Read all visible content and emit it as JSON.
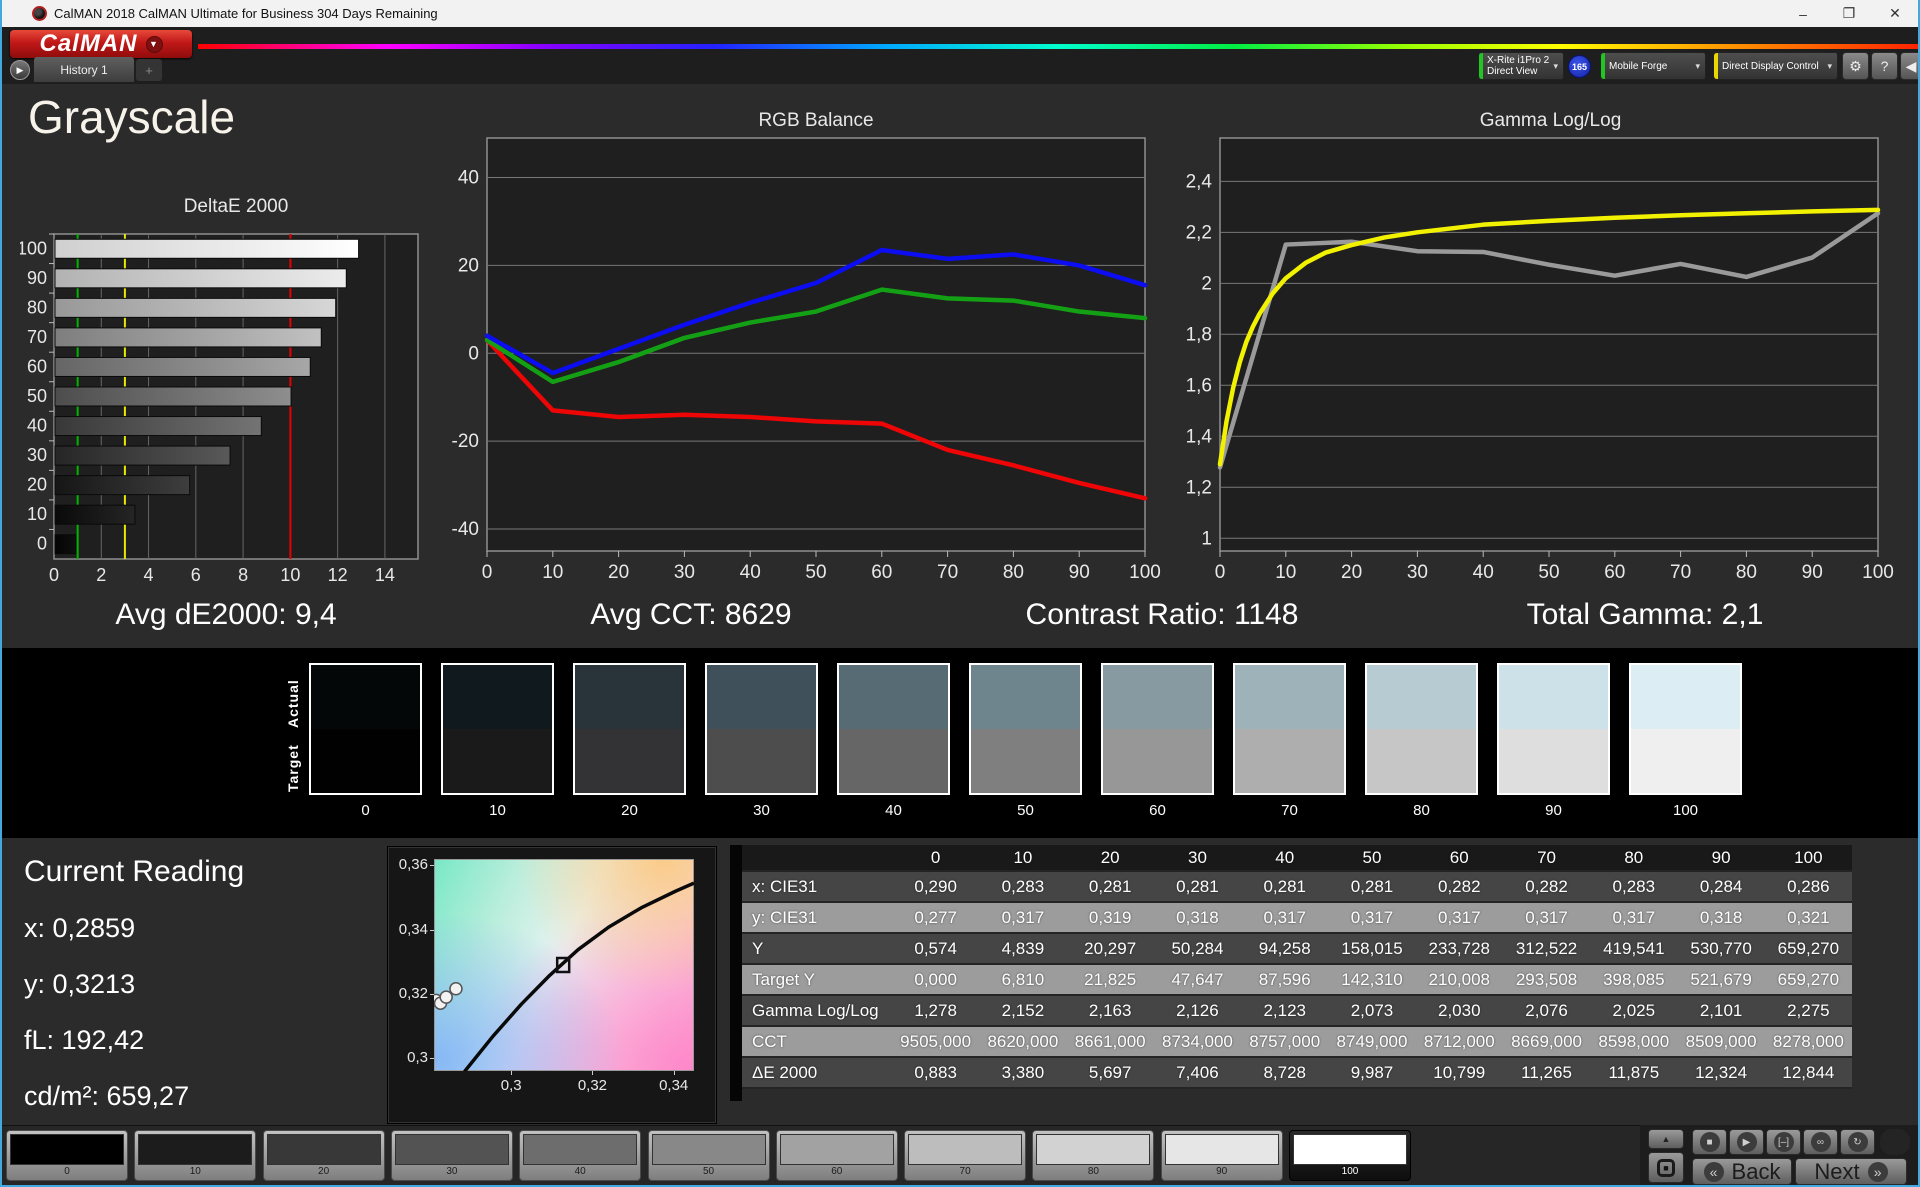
{
  "window": {
    "title": "CalMAN 2018 CalMAN Ultimate for Business 304 Days Remaining",
    "minimize": "–",
    "maximize": "❐",
    "close": "✕"
  },
  "brand": {
    "logo": "CalMAN",
    "logo_arrow": "▼"
  },
  "toolbar": {
    "tab_arrow": "▶",
    "history_tab": "History 1",
    "add_tab": "+",
    "meter_line1": "X-Rite i1Pro 2",
    "meter_line2": "Direct View",
    "meter_badge": "165",
    "source": "Mobile Forge",
    "control": "Direct Display Control",
    "dropdown_arrow": "▾",
    "gear": "⚙",
    "help": "?",
    "collapse": "◀",
    "accent_green": "#22c522",
    "accent_yellow": "#e8d800"
  },
  "page_title": "Grayscale",
  "summary": {
    "avg_de": "Avg dE2000: 9,4",
    "avg_cct": "Avg CCT: 8629",
    "contrast": "Contrast Ratio: 1148",
    "total_gamma": "Total Gamma: 2,1"
  },
  "chart_data": [
    {
      "type": "bar",
      "title": "DeltaE 2000",
      "orientation": "horizontal",
      "categories": [
        "100",
        "90",
        "80",
        "70",
        "60",
        "50",
        "40",
        "30",
        "20",
        "10",
        "0"
      ],
      "values": [
        12.844,
        12.324,
        11.875,
        11.265,
        10.799,
        9.987,
        8.728,
        7.406,
        5.697,
        3.38,
        0.883
      ],
      "xlim": [
        0,
        15.4
      ],
      "xticks": [
        0,
        2,
        4,
        6,
        8,
        10,
        12,
        14
      ],
      "markers": [
        {
          "value": 1,
          "color": "#00b400"
        },
        {
          "value": 3,
          "color": "#e8e800"
        },
        {
          "value": 10,
          "color": "#e80000"
        }
      ],
      "bar_colors": [
        [
          "#cfcfcf",
          "#ffffff"
        ],
        [
          "#b2b2b2",
          "#ececec"
        ],
        [
          "#989898",
          "#d7d7d7"
        ],
        [
          "#7e7e7e",
          "#c1c1c1"
        ],
        [
          "#656565",
          "#a7a7a7"
        ],
        [
          "#4d4d4d",
          "#8e8e8e"
        ],
        [
          "#383838",
          "#747474"
        ],
        [
          "#262626",
          "#595959"
        ],
        [
          "#161616",
          "#3e3e3e"
        ],
        [
          "#0a0a0a",
          "#252525"
        ],
        [
          "#040404",
          "#0f0f0f"
        ]
      ]
    },
    {
      "type": "line",
      "title": "RGB Balance",
      "x": [
        0,
        10,
        20,
        30,
        40,
        50,
        60,
        70,
        80,
        90,
        100
      ],
      "ylim": [
        -45,
        49
      ],
      "yticks": [
        40,
        20,
        0,
        -20,
        -40
      ],
      "ytick_labels": [
        "40",
        "20",
        "0",
        "-20",
        "-40"
      ],
      "xtick_labels": [
        "0",
        "10",
        "20",
        "30",
        "40",
        "50",
        "60",
        "70",
        "80",
        "90",
        "100"
      ],
      "series": [
        {
          "name": "Red",
          "color": "#ee0505",
          "values": [
            3,
            -13,
            -14.5,
            -14,
            -14.5,
            -15.5,
            -16,
            -22,
            -25.5,
            -29.5,
            -33
          ]
        },
        {
          "name": "Green",
          "color": "#14a014",
          "values": [
            3,
            -6.5,
            -2,
            3.5,
            7,
            9.5,
            14.5,
            12.5,
            12,
            9.5,
            8
          ]
        },
        {
          "name": "Blue",
          "color": "#0d0df2",
          "values": [
            4,
            -4.5,
            1,
            6.5,
            11.5,
            16,
            23.5,
            21.5,
            22.5,
            20,
            15.5
          ]
        }
      ]
    },
    {
      "type": "line",
      "title": "Gamma Log/Log",
      "x": [
        0,
        10,
        20,
        30,
        40,
        50,
        60,
        70,
        80,
        90,
        100
      ],
      "ylim": [
        0.95,
        2.57
      ],
      "yticks": [
        2.4,
        2.2,
        2.0,
        1.8,
        1.6,
        1.4,
        1.2,
        1.0
      ],
      "ytick_labels": [
        "2,4",
        "2,2",
        "2",
        "1,8",
        "1,6",
        "1,4",
        "1,2",
        "1"
      ],
      "xtick_labels": [
        "0",
        "10",
        "20",
        "30",
        "40",
        "50",
        "60",
        "70",
        "80",
        "90",
        "100"
      ],
      "series": [
        {
          "name": "Measured",
          "color": "#9a9a9a",
          "values": [
            1.278,
            2.152,
            2.163,
            2.126,
            2.123,
            2.073,
            2.03,
            2.076,
            2.025,
            2.101,
            2.275
          ]
        },
        {
          "name": "Target",
          "color": "#f2f200",
          "x": [
            0,
            1,
            2,
            3,
            4,
            5,
            6,
            8,
            10,
            13,
            16,
            20,
            25,
            30,
            40,
            50,
            60,
            70,
            80,
            90,
            100
          ],
          "values": [
            1.29,
            1.46,
            1.59,
            1.69,
            1.77,
            1.83,
            1.88,
            1.96,
            2.02,
            2.08,
            2.12,
            2.15,
            2.18,
            2.2,
            2.23,
            2.245,
            2.257,
            2.267,
            2.275,
            2.282,
            2.288
          ]
        }
      ]
    },
    {
      "type": "scatter",
      "title": "CIE 1931 xy",
      "xlim": [
        0.281,
        0.345
      ],
      "ylim": [
        0.296,
        0.362
      ],
      "xticks": [
        0.3,
        0.32,
        0.34
      ],
      "xtick_labels": [
        "0,3",
        "0,32",
        "0,34"
      ],
      "yticks": [
        0.36,
        0.34,
        0.32,
        0.3
      ],
      "ytick_labels": [
        "0,36",
        "0,34",
        "0,32",
        "0,3"
      ],
      "locus": [
        [
          0.2885,
          0.2958
        ],
        [
          0.2955,
          0.3068
        ],
        [
          0.3025,
          0.3168
        ],
        [
          0.3095,
          0.3258
        ],
        [
          0.3165,
          0.3338
        ],
        [
          0.324,
          0.3408
        ],
        [
          0.332,
          0.3468
        ],
        [
          0.3405,
          0.352
        ],
        [
          0.345,
          0.3545
        ]
      ],
      "target_marker": {
        "x": 0.3128,
        "y": 0.329
      },
      "points": [
        [
          0.2815,
          0.318
        ],
        [
          0.2826,
          0.3171
        ],
        [
          0.284,
          0.319
        ],
        [
          0.2864,
          0.3216
        ]
      ]
    }
  ],
  "swatches": {
    "actual_label": "Actual",
    "target_label": "Target",
    "levels": [
      "0",
      "10",
      "20",
      "30",
      "40",
      "50",
      "60",
      "70",
      "80",
      "90",
      "100"
    ],
    "actual_colors": [
      "#030708",
      "#10191d",
      "#29343a",
      "#3f505a",
      "#566b74",
      "#6e858d",
      "#879aa1",
      "#9eb2b9",
      "#b7ccd2",
      "#cde2e8",
      "#dceef4"
    ],
    "target_colors": [
      "#010101",
      "#1a1a1a",
      "#333335",
      "#4d4d4d",
      "#666666",
      "#7f7f7f",
      "#979797",
      "#aeaeae",
      "#c6c6c6",
      "#dedede",
      "#efefef"
    ]
  },
  "current_reading": {
    "title": "Current Reading",
    "lines": [
      "x: 0,2859",
      "y: 0,3213",
      "fL: 192,42",
      "cd/m²: 659,27"
    ]
  },
  "table": {
    "col_headers": [
      "",
      "0",
      "10",
      "20",
      "30",
      "40",
      "50",
      "60",
      "70",
      "80",
      "90",
      "100"
    ],
    "rows": [
      {
        "label": "x: CIE31",
        "values": [
          "0,290",
          "0,283",
          "0,281",
          "0,281",
          "0,281",
          "0,281",
          "0,282",
          "0,282",
          "0,283",
          "0,284",
          "0,286"
        ]
      },
      {
        "label": "y: CIE31",
        "values": [
          "0,277",
          "0,317",
          "0,319",
          "0,318",
          "0,317",
          "0,317",
          "0,317",
          "0,317",
          "0,317",
          "0,318",
          "0,321"
        ]
      },
      {
        "label": "Y",
        "values": [
          "0,574",
          "4,839",
          "20,297",
          "50,284",
          "94,258",
          "158,015",
          "233,728",
          "312,522",
          "419,541",
          "530,770",
          "659,270"
        ]
      },
      {
        "label": "Target Y",
        "values": [
          "0,000",
          "6,810",
          "21,825",
          "47,647",
          "87,596",
          "142,310",
          "210,008",
          "293,508",
          "398,085",
          "521,679",
          "659,270"
        ]
      },
      {
        "label": "Gamma Log/Log",
        "values": [
          "1,278",
          "2,152",
          "2,163",
          "2,126",
          "2,123",
          "2,073",
          "2,030",
          "2,076",
          "2,025",
          "2,101",
          "2,275"
        ]
      },
      {
        "label": "CCT",
        "values": [
          "9505,000",
          "8620,000",
          "8661,000",
          "8734,000",
          "8757,000",
          "8749,000",
          "8712,000",
          "8669,000",
          "8598,000",
          "8509,000",
          "8278,000"
        ]
      },
      {
        "label": "ΔE 2000",
        "values": [
          "0,883",
          "3,380",
          "5,697",
          "7,406",
          "8,728",
          "9,987",
          "10,799",
          "11,265",
          "11,875",
          "12,324",
          "12,844"
        ]
      }
    ],
    "dark_row_bg": "#454545",
    "light_row_bg": "#9c9c9c",
    "header_bg": "#191919"
  },
  "bottom": {
    "patch_levels": [
      "0",
      "10",
      "20",
      "30",
      "40",
      "50",
      "60",
      "70",
      "80",
      "90",
      "100"
    ],
    "patch_colors": [
      "#000000",
      "#1c1c1c",
      "#383838",
      "#535353",
      "#6d6d6d",
      "#888888",
      "#a2a2a2",
      "#bdbdbd",
      "#d2d2d2",
      "#e6e6e6",
      "#ffffff"
    ],
    "selected": "100",
    "controls": {
      "up": "▲",
      "marker": "■",
      "stop": "■",
      "play": "▶",
      "range": "[–]",
      "loop": "∞",
      "refresh": "↻",
      "back_arrow": "«",
      "next_arrow": "»"
    },
    "back": "Back",
    "next": "Next"
  }
}
